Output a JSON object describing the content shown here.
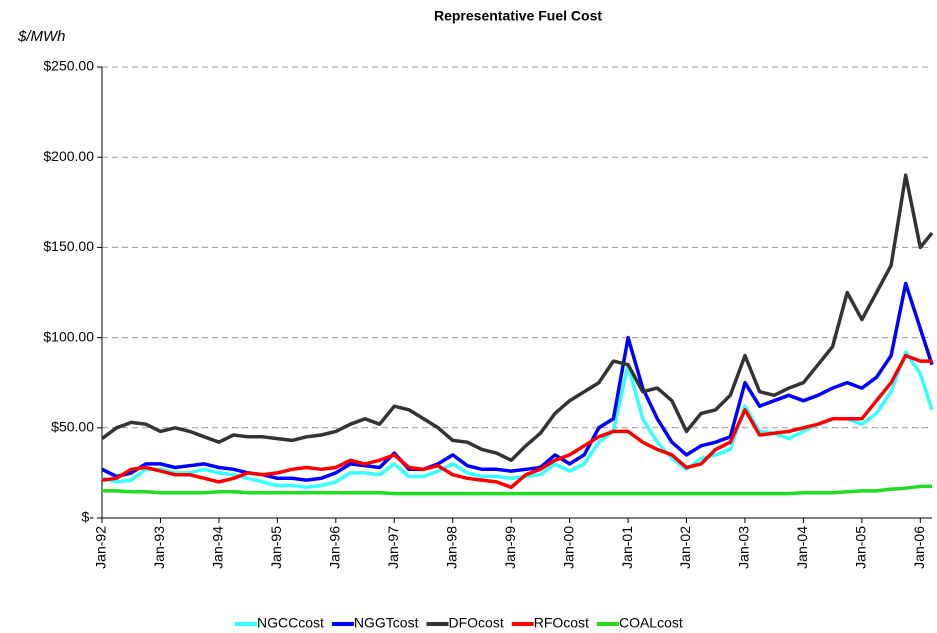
{
  "chart_data": {
    "type": "line",
    "title": "Representative Fuel Cost",
    "y_label": "$/MWh",
    "x": [
      1992,
      1992.25,
      1992.5,
      1992.75,
      1993,
      1993.25,
      1993.5,
      1993.75,
      1994,
      1994.25,
      1994.5,
      1994.75,
      1995,
      1995.25,
      1995.5,
      1995.75,
      1996,
      1996.25,
      1996.5,
      1996.75,
      1997,
      1997.25,
      1997.5,
      1997.75,
      1998,
      1998.25,
      1998.5,
      1998.75,
      1999,
      1999.25,
      1999.5,
      1999.75,
      2000,
      2000.25,
      2000.5,
      2000.75,
      2001,
      2001.25,
      2001.5,
      2001.75,
      2002,
      2002.25,
      2002.5,
      2002.75,
      2003,
      2003.25,
      2003.5,
      2003.75,
      2004,
      2004.25,
      2004.5,
      2004.75,
      2005,
      2005.25,
      2005.5,
      2005.75,
      2006,
      2006.2
    ],
    "series": [
      {
        "name": "NGCCcost",
        "color": "#33ffff",
        "values": [
          22,
          20,
          21,
          27,
          27,
          25,
          25,
          27,
          25,
          24,
          22,
          20,
          18,
          18,
          17,
          18,
          20,
          25,
          25,
          24,
          30,
          23,
          23,
          26,
          30,
          25,
          23,
          23,
          22,
          23,
          24,
          30,
          26,
          30,
          42,
          48,
          85,
          55,
          42,
          33,
          27,
          33,
          35,
          38,
          62,
          48,
          47,
          44,
          48,
          52,
          55,
          55,
          52,
          58,
          70,
          92,
          80,
          60
        ]
      },
      {
        "name": "NGGTcost",
        "color": "#0000ff",
        "values": [
          27,
          23,
          25,
          30,
          30,
          28,
          29,
          30,
          28,
          27,
          25,
          24,
          22,
          22,
          21,
          22,
          25,
          30,
          29,
          28,
          36,
          27,
          27,
          30,
          35,
          29,
          27,
          27,
          26,
          27,
          28,
          35,
          30,
          35,
          50,
          55,
          100,
          72,
          55,
          42,
          35,
          40,
          42,
          45,
          75,
          62,
          65,
          68,
          65,
          68,
          72,
          75,
          72,
          78,
          90,
          130,
          105,
          85
        ]
      },
      {
        "name": "DFOcost",
        "color": "#333333",
        "values": [
          44,
          50,
          53,
          52,
          48,
          50,
          48,
          45,
          42,
          46,
          45,
          45,
          44,
          43,
          45,
          46,
          48,
          52,
          55,
          52,
          62,
          60,
          55,
          50,
          43,
          42,
          38,
          36,
          32,
          40,
          47,
          58,
          65,
          70,
          75,
          87,
          85,
          70,
          72,
          65,
          48,
          58,
          60,
          68,
          90,
          70,
          68,
          72,
          75,
          85,
          95,
          125,
          110,
          125,
          140,
          190,
          150,
          158
        ]
      },
      {
        "name": "RFOcost",
        "color": "#ff0000",
        "values": [
          21,
          22,
          27,
          28,
          26,
          24,
          24,
          22,
          20,
          22,
          25,
          24,
          25,
          27,
          28,
          27,
          28,
          32,
          30,
          32,
          35,
          28,
          27,
          29,
          24,
          22,
          21,
          20,
          17,
          24,
          27,
          32,
          35,
          40,
          45,
          48,
          48,
          42,
          38,
          35,
          28,
          30,
          38,
          42,
          60,
          46,
          47,
          48,
          50,
          52,
          55,
          55,
          55,
          65,
          75,
          90,
          87,
          87
        ]
      },
      {
        "name": "COALcost",
        "color": "#22dd22",
        "values": [
          15,
          15,
          14.5,
          14.5,
          14,
          14,
          14,
          14,
          14.5,
          14.5,
          14,
          14,
          14,
          14,
          14,
          14,
          14,
          14,
          14,
          14,
          13.5,
          13.5,
          13.5,
          13.5,
          13.5,
          13.5,
          13.5,
          13.5,
          13.5,
          13.5,
          13.5,
          13.5,
          13.5,
          13.5,
          13.5,
          13.5,
          13.5,
          13.5,
          13.5,
          13.5,
          13.5,
          13.5,
          13.5,
          13.5,
          13.5,
          13.5,
          13.5,
          13.5,
          14,
          14,
          14,
          14.5,
          15,
          15,
          16,
          16.5,
          17.5,
          17.5
        ]
      }
    ],
    "xlim": [
      1992,
      2006.2
    ],
    "xticks": [
      {
        "value": 1992,
        "label": "Jan-92"
      },
      {
        "value": 1993,
        "label": "Jan-93"
      },
      {
        "value": 1994,
        "label": "Jan-94"
      },
      {
        "value": 1995,
        "label": "Jan-95"
      },
      {
        "value": 1996,
        "label": "Jan-96"
      },
      {
        "value": 1997,
        "label": "Jan-97"
      },
      {
        "value": 1998,
        "label": "Jan-98"
      },
      {
        "value": 1999,
        "label": "Jan-99"
      },
      {
        "value": 2000,
        "label": "Jan-00"
      },
      {
        "value": 2001,
        "label": "Jan-01"
      },
      {
        "value": 2002,
        "label": "Jan-02"
      },
      {
        "value": 2003,
        "label": "Jan-03"
      },
      {
        "value": 2004,
        "label": "Jan-04"
      },
      {
        "value": 2005,
        "label": "Jan-05"
      },
      {
        "value": 2006,
        "label": "Jan-06"
      }
    ],
    "ylim": [
      0,
      250
    ],
    "yticks": [
      {
        "value": 0,
        "label": "$-"
      },
      {
        "value": 50,
        "label": "$50.00"
      },
      {
        "value": 100,
        "label": "$100.00"
      },
      {
        "value": 150,
        "label": "$150.00"
      },
      {
        "value": 200,
        "label": "$200.00"
      },
      {
        "value": 250,
        "label": "$250.00"
      }
    ],
    "grid": true,
    "legend": "bottom"
  }
}
